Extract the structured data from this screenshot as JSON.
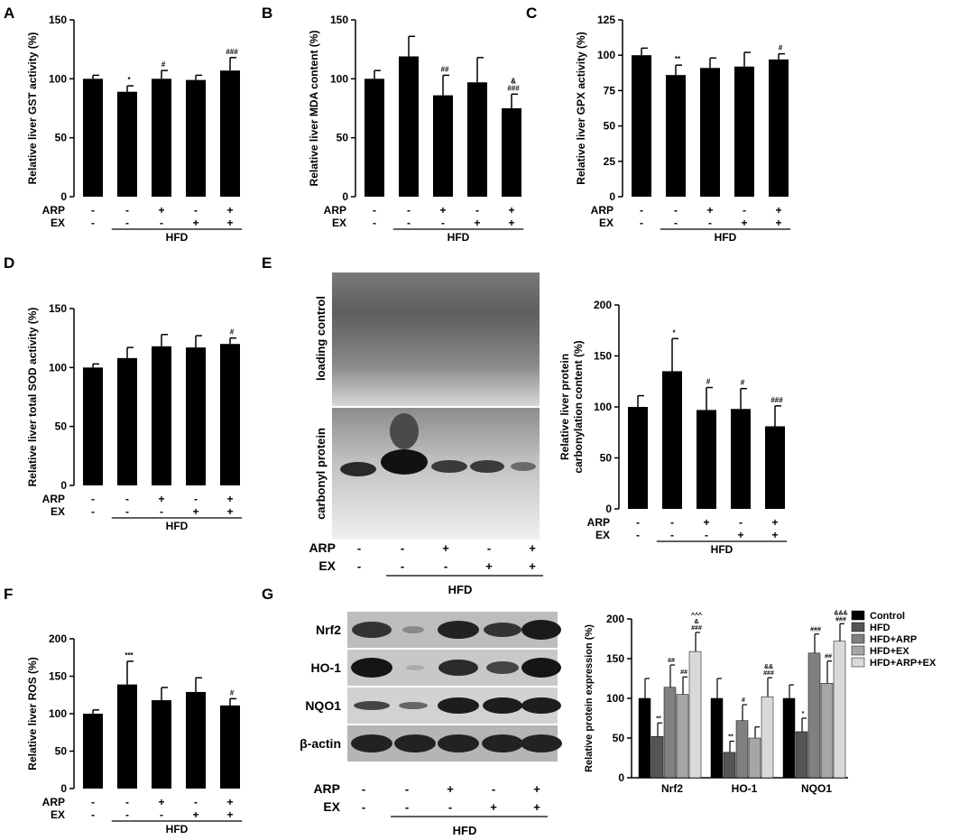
{
  "panels": {
    "A": {
      "letter": "A"
    },
    "B": {
      "letter": "B"
    },
    "C": {
      "letter": "C"
    },
    "D": {
      "letter": "D"
    },
    "E": {
      "letter": "E",
      "blot_labels": [
        "loading control",
        "carbonyl protein"
      ]
    },
    "F": {
      "letter": "F"
    },
    "G": {
      "letter": "G",
      "blot_labels": [
        "Nrf2",
        "HO-1",
        "NQO1",
        "β-actin"
      ]
    }
  },
  "treatment_table": {
    "rows": [
      {
        "label": "ARP",
        "signs": [
          "-",
          "-",
          "+",
          "-",
          "+"
        ]
      },
      {
        "label": "EX",
        "signs": [
          "-",
          "-",
          "-",
          "+",
          "+"
        ]
      }
    ],
    "group_label": "HFD"
  },
  "colors": {
    "bar": "#000000",
    "g_series": [
      "#000000",
      "#555555",
      "#808080",
      "#a6a6a6",
      "#d9d9d9"
    ]
  },
  "chart_data": [
    {
      "panel": "A",
      "type": "bar",
      "ylabel": "Relative liver GST activity (%)",
      "ylim": [
        0,
        150
      ],
      "yticks": [
        0,
        50,
        100,
        150
      ],
      "values": [
        100,
        89,
        100,
        99,
        107
      ],
      "errors": [
        3,
        5,
        7,
        4,
        11
      ],
      "annotations": [
        "",
        "*",
        "#",
        "",
        "###"
      ]
    },
    {
      "panel": "B",
      "type": "bar",
      "ylabel": "Relative liver MDA content (%)",
      "ylim": [
        0,
        150
      ],
      "yticks": [
        0,
        50,
        100,
        150
      ],
      "values": [
        100,
        119,
        86,
        97,
        75
      ],
      "errors": [
        7,
        17,
        17,
        21,
        12
      ],
      "annotations": [
        "",
        "",
        "##",
        "",
        "&\n###"
      ]
    },
    {
      "panel": "C",
      "type": "bar",
      "ylabel": "Relative liver GPX activity (%)",
      "ylim": [
        0,
        125
      ],
      "yticks": [
        0,
        25,
        50,
        75,
        100,
        125
      ],
      "values": [
        100,
        86,
        91,
        92,
        97
      ],
      "errors": [
        5,
        7,
        7,
        10,
        4
      ],
      "annotations": [
        "",
        "**",
        "",
        "",
        "#"
      ]
    },
    {
      "panel": "D",
      "type": "bar",
      "ylabel": "Relative liver total SOD activity (%)",
      "ylim": [
        0,
        150
      ],
      "yticks": [
        0,
        50,
        100,
        150
      ],
      "values": [
        100,
        108,
        118,
        117,
        120
      ],
      "errors": [
        3,
        9,
        10,
        10,
        5
      ],
      "annotations": [
        "",
        "",
        "",
        "",
        "#"
      ]
    },
    {
      "panel": "E",
      "type": "bar",
      "ylabel": "Relative liver protein\ncarbonylation content (%)",
      "ylim": [
        0,
        200
      ],
      "yticks": [
        0,
        50,
        100,
        150,
        200
      ],
      "values": [
        100,
        135,
        97,
        98,
        81
      ],
      "errors": [
        11,
        32,
        22,
        20,
        20
      ],
      "annotations": [
        "",
        "*",
        "#",
        "#",
        "###"
      ]
    },
    {
      "panel": "F",
      "type": "bar",
      "ylabel": "Relative liver ROS (%)",
      "ylim": [
        0,
        200
      ],
      "yticks": [
        0,
        50,
        100,
        150,
        200
      ],
      "values": [
        100,
        139,
        118,
        129,
        111
      ],
      "errors": [
        5,
        31,
        17,
        19,
        9
      ],
      "annotations": [
        "",
        "***",
        "",
        "",
        "#"
      ]
    },
    {
      "panel": "G",
      "type": "bar",
      "ylabel": "Relative protein expression (%)",
      "ylim": [
        0,
        200
      ],
      "yticks": [
        0,
        50,
        100,
        150,
        200
      ],
      "categories": [
        "Nrf2",
        "HO-1",
        "NQO1"
      ],
      "legend": "top-right",
      "series": [
        {
          "name": "Control",
          "values": [
            100,
            100,
            100
          ],
          "errors": [
            25,
            25,
            17
          ],
          "annotations": [
            "",
            "",
            ""
          ]
        },
        {
          "name": "HFD",
          "values": [
            52,
            32,
            58
          ],
          "errors": [
            17,
            14,
            17
          ],
          "annotations": [
            "**",
            "**",
            "*"
          ]
        },
        {
          "name": "HFD+ARP",
          "values": [
            114,
            72,
            157
          ],
          "errors": [
            28,
            20,
            24
          ],
          "annotations": [
            "##",
            "#",
            "###"
          ]
        },
        {
          "name": "HFD+EX",
          "values": [
            105,
            50,
            119
          ],
          "errors": [
            22,
            14,
            28
          ],
          "annotations": [
            "##",
            "",
            "##"
          ]
        },
        {
          "name": "HFD+ARP+EX",
          "values": [
            159,
            102,
            172
          ],
          "errors": [
            24,
            24,
            22
          ],
          "annotations": [
            "^^^\n&\n###",
            "&&\n###",
            "&&&\n###"
          ]
        }
      ]
    }
  ]
}
